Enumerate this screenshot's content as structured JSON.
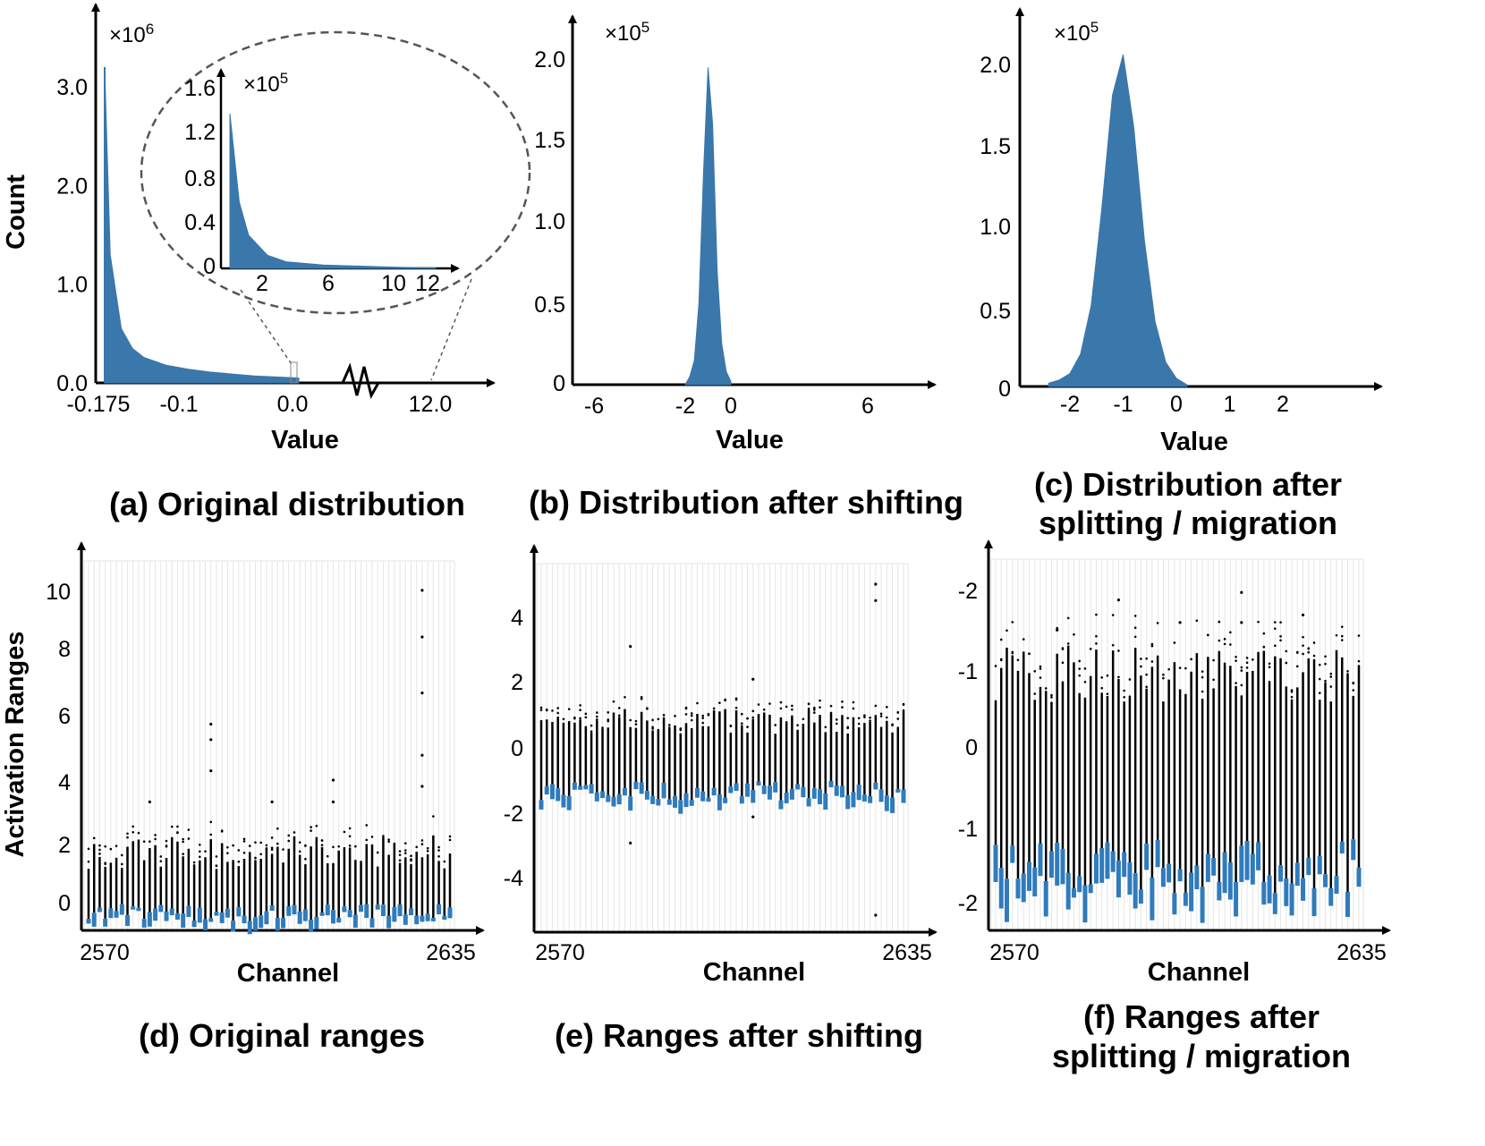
{
  "colors": {
    "bar": "#3a77ab",
    "box": "#2f7bbd",
    "axis": "#000000",
    "grid": "#e6e6e6",
    "inset_ellipse": "#555555"
  },
  "chart_data": [
    {
      "id": "a",
      "type": "bar",
      "caption": "(a) Original distribution",
      "xlabel": "Value",
      "ylabel": "Count",
      "y_multiplier": "×10^6",
      "yticks": [
        "3.0",
        "2.0",
        "1.0",
        "0.0"
      ],
      "xticks": [
        "-0.175",
        "-0.1",
        "0.0",
        "12.0"
      ],
      "x_axis_break": true,
      "x": [
        -0.175,
        -0.17,
        -0.16,
        -0.15,
        -0.14,
        -0.12,
        -0.1,
        -0.08,
        -0.06,
        -0.04,
        -0.02,
        0.0
      ],
      "values": [
        3.2,
        1.3,
        0.55,
        0.35,
        0.26,
        0.18,
        0.14,
        0.11,
        0.09,
        0.07,
        0.06,
        0.05
      ],
      "ylim": [
        0,
        3.4
      ],
      "inset": {
        "y_multiplier": "×10^5",
        "yticks": [
          "1.6",
          "1.2",
          "0.8",
          "0.4",
          "0"
        ],
        "xticks": [
          "2",
          "6",
          "10",
          "12"
        ],
        "x": [
          1,
          1.5,
          2,
          3,
          4,
          6,
          8,
          10,
          12
        ],
        "values": [
          1.4,
          0.6,
          0.3,
          0.12,
          0.06,
          0.03,
          0.02,
          0.01,
          0.005
        ],
        "ylim": [
          0,
          1.7
        ]
      }
    },
    {
      "id": "b",
      "type": "bar",
      "caption": "(b) Distribution after shifting",
      "xlabel": "Value",
      "ylabel": "",
      "y_multiplier": "×10^5",
      "yticks": [
        "2.0",
        "1.5",
        "1.0",
        "0.5",
        "0"
      ],
      "xticks": [
        "-6",
        "-2",
        "0",
        "6"
      ],
      "x": [
        -2.0,
        -1.8,
        -1.6,
        -1.4,
        -1.2,
        -1.0,
        -0.8,
        -0.6,
        -0.4,
        -0.2,
        0.0
      ],
      "values": [
        0.0,
        0.05,
        0.15,
        0.5,
        1.3,
        1.95,
        1.6,
        0.7,
        0.25,
        0.08,
        0.02
      ],
      "xlim": [
        -7,
        9
      ],
      "ylim": [
        0,
        2.2
      ]
    },
    {
      "id": "c",
      "type": "bar",
      "caption": "(c) Distribution after splitting / migration",
      "xlabel": "Value",
      "ylabel": "",
      "y_multiplier": "×10^5",
      "yticks": [
        "2.0",
        "1.5",
        "1.0",
        "0.5",
        "0"
      ],
      "xticks": [
        "-2",
        "-1",
        "0",
        "1",
        "2"
      ],
      "x": [
        -2.4,
        -2.2,
        -2.0,
        -1.8,
        -1.6,
        -1.4,
        -1.2,
        -1.0,
        -0.8,
        -0.6,
        -0.4,
        -0.2,
        0.0,
        0.2
      ],
      "values": [
        0.02,
        0.04,
        0.08,
        0.2,
        0.5,
        1.1,
        1.8,
        2.05,
        1.6,
        0.9,
        0.4,
        0.15,
        0.05,
        0.01
      ],
      "xlim": [
        -3.0,
        3.8
      ],
      "ylim": [
        0,
        2.1
      ]
    },
    {
      "id": "d",
      "type": "box",
      "caption": "(d) Original ranges",
      "xlabel": "Channel",
      "ylabel": "Activation Ranges",
      "yticks": [
        "10",
        "8",
        "6",
        "4",
        "2",
        "0"
      ],
      "xticks": [
        "2570",
        "2635"
      ],
      "ylim": [
        -0.4,
        10.9
      ],
      "whisker_range": [
        1.3,
        2.4
      ],
      "box_range": [
        -0.35,
        0.6
      ],
      "outliers": [
        [
          10,
          10.3
        ],
        [
          10,
          8.8
        ],
        [
          10,
          7
        ],
        [
          10,
          5
        ],
        [
          10,
          4
        ],
        [
          3,
          6
        ],
        [
          3,
          5.5
        ],
        [
          3,
          4.5
        ],
        [
          7,
          4.2
        ],
        [
          7,
          3.5
        ],
        [
          5,
          3.5
        ],
        [
          1,
          3.5
        ]
      ]
    },
    {
      "id": "e",
      "type": "box",
      "caption": "(e) Ranges after shifting",
      "xlabel": "Channel",
      "ylabel": "",
      "yticks": [
        "4",
        "2",
        "0",
        "-2",
        "-4"
      ],
      "xticks": [
        "2570",
        "2635"
      ],
      "ylim": [
        -5.3,
        5.4
      ],
      "whisker_range": [
        0.5,
        1.3
      ],
      "box_range": [
        -1.5,
        -0.5
      ],
      "outliers": [
        [
          10,
          5.1
        ],
        [
          10,
          4.6
        ],
        [
          10,
          -5.0
        ],
        [
          2,
          3.2
        ],
        [
          2,
          -2.8
        ],
        [
          6,
          2.2
        ],
        [
          6,
          -2.0
        ]
      ]
    },
    {
      "id": "f",
      "type": "box",
      "caption": "(f) Ranges after splitting / migration",
      "xlabel": "Channel",
      "ylabel": "",
      "yticks": [
        "-2",
        "-1",
        "0",
        "-1",
        "-2"
      ],
      "xticks": [
        "2570",
        "2635"
      ],
      "ylim": [
        -2.3,
        2.4
      ],
      "whisker_range": [
        0.6,
        1.4
      ],
      "box_range": [
        -1.9,
        -0.7
      ],
      "outliers": [
        [
          7,
          2.1
        ],
        [
          7,
          1.7
        ],
        [
          3,
          2.0
        ],
        [
          5,
          1.7
        ],
        [
          9,
          1.8
        ],
        [
          1,
          1.6
        ]
      ]
    }
  ]
}
